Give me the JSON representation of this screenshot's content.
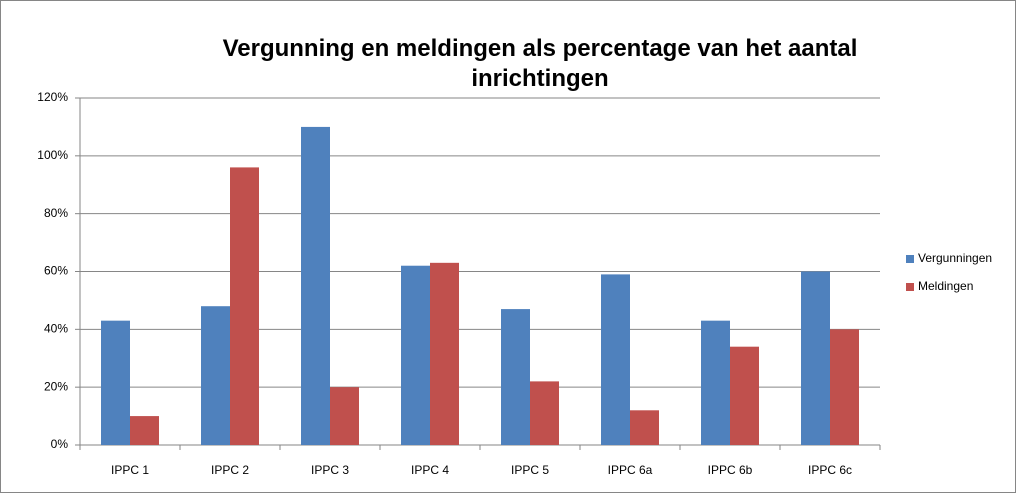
{
  "chart_data": {
    "type": "bar",
    "title": "Vergunning en meldingen als percentage van het aantal inrichtingen",
    "categories": [
      "IPPC 1",
      "IPPC 2",
      "IPPC 3",
      "IPPC 4",
      "IPPC 5",
      "IPPC 6a",
      "IPPC 6b",
      "IPPC 6c"
    ],
    "series": [
      {
        "name": "Vergunningen",
        "color": "#4f81bd",
        "values": [
          43,
          48,
          110,
          62,
          47,
          59,
          43,
          60
        ]
      },
      {
        "name": "Meldingen",
        "color": "#c0504d",
        "values": [
          10,
          96,
          20,
          63,
          22,
          12,
          34,
          40
        ]
      }
    ],
    "ylim": [
      0,
      120
    ],
    "yticks": [
      {
        "value": 0,
        "label": "0%"
      },
      {
        "value": 20,
        "label": "20%"
      },
      {
        "value": 40,
        "label": "40%"
      },
      {
        "value": 60,
        "label": "60%"
      },
      {
        "value": 80,
        "label": "80%"
      },
      {
        "value": 100,
        "label": "100%"
      },
      {
        "value": 120,
        "label": "120%"
      }
    ],
    "grid": true,
    "legend": "right"
  }
}
